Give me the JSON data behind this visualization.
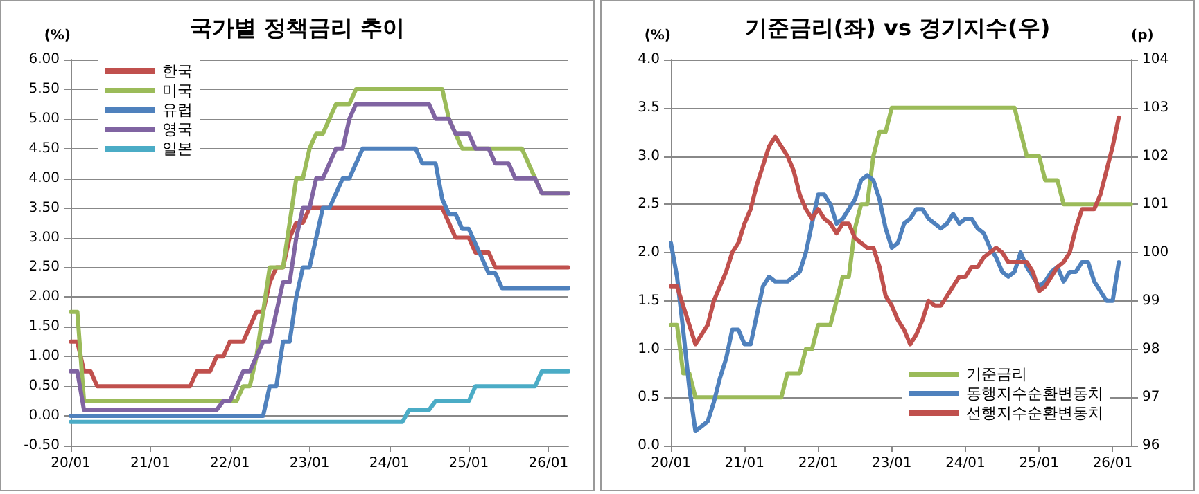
{
  "chart_data": [
    {
      "type": "line",
      "title": "국가별 정책금리 추이",
      "ylabel": "(%)",
      "categories": [
        "20/01",
        null,
        null,
        null,
        null,
        null,
        null,
        null,
        null,
        null,
        null,
        null,
        "21/01",
        null,
        null,
        null,
        null,
        null,
        null,
        null,
        null,
        null,
        null,
        null,
        "22/01",
        null,
        null,
        null,
        null,
        null,
        null,
        null,
        null,
        null,
        null,
        null,
        "23/01",
        null,
        null,
        null,
        null,
        null,
        null,
        null,
        null,
        null,
        null,
        null,
        "24/01",
        null,
        null,
        null,
        null,
        null,
        null,
        null,
        null,
        null,
        null,
        null,
        "25/01",
        null,
        null,
        null,
        null,
        null,
        null,
        null,
        null,
        null,
        null,
        null,
        "26/01",
        null,
        null,
        null
      ],
      "series": [
        {
          "name": "한국",
          "color": "#c0504d",
          "values": [
            1.25,
            1.25,
            0.75,
            0.75,
            0.5,
            0.5,
            0.5,
            0.5,
            0.5,
            0.5,
            0.5,
            0.5,
            0.5,
            0.5,
            0.5,
            0.5,
            0.5,
            0.5,
            0.5,
            0.75,
            0.75,
            0.75,
            1,
            1,
            1.25,
            1.25,
            1.25,
            1.5,
            1.75,
            1.75,
            2.25,
            2.5,
            2.5,
            3,
            3.25,
            3.25,
            3.5,
            3.5,
            3.5,
            3.5,
            3.5,
            3.5,
            3.5,
            3.5,
            3.5,
            3.5,
            3.5,
            3.5,
            3.5,
            3.5,
            3.5,
            3.5,
            3.5,
            3.5,
            3.5,
            3.5,
            3.5,
            3.25,
            3,
            3,
            3,
            2.75,
            2.75,
            2.75,
            2.5,
            2.5,
            2.5,
            2.5,
            2.5,
            2.5,
            2.5,
            2.5,
            2.5,
            2.5,
            2.5,
            2.5
          ]
        },
        {
          "name": "미국",
          "color": "#9bbb59",
          "values": [
            1.75,
            1.75,
            0.25,
            0.25,
            0.25,
            0.25,
            0.25,
            0.25,
            0.25,
            0.25,
            0.25,
            0.25,
            0.25,
            0.25,
            0.25,
            0.25,
            0.25,
            0.25,
            0.25,
            0.25,
            0.25,
            0.25,
            0.25,
            0.25,
            0.25,
            0.25,
            0.5,
            0.5,
            1,
            1.75,
            2.5,
            2.5,
            2.5,
            3.25,
            4,
            4,
            4.5,
            4.75,
            4.75,
            5,
            5.25,
            5.25,
            5.25,
            5.5,
            5.5,
            5.5,
            5.5,
            5.5,
            5.5,
            5.5,
            5.5,
            5.5,
            5.5,
            5.5,
            5.5,
            5.5,
            5.5,
            5,
            4.75,
            4.5,
            4.5,
            4.5,
            4.5,
            4.5,
            4.5,
            4.5,
            4.5,
            4.5,
            4.5,
            4.25,
            4,
            3.75,
            3.75,
            3.75,
            3.75,
            3.75
          ]
        },
        {
          "name": "유럽",
          "color": "#4f81bd",
          "values": [
            0,
            0,
            0,
            0,
            0,
            0,
            0,
            0,
            0,
            0,
            0,
            0,
            0,
            0,
            0,
            0,
            0,
            0,
            0,
            0,
            0,
            0,
            0,
            0,
            0,
            0,
            0,
            0,
            0,
            0,
            0.5,
            0.5,
            1.25,
            1.25,
            2,
            2.5,
            2.5,
            3,
            3.5,
            3.5,
            3.75,
            4,
            4,
            4.25,
            4.5,
            4.5,
            4.5,
            4.5,
            4.5,
            4.5,
            4.5,
            4.5,
            4.5,
            4.25,
            4.25,
            4.25,
            3.65,
            3.4,
            3.4,
            3.15,
            3.15,
            2.9,
            2.65,
            2.4,
            2.4,
            2.15,
            2.15,
            2.15,
            2.15,
            2.15,
            2.15,
            2.15,
            2.15,
            2.15,
            2.15,
            2.15
          ]
        },
        {
          "name": "영국",
          "color": "#8064a2",
          "values": [
            0.75,
            0.75,
            0.1,
            0.1,
            0.1,
            0.1,
            0.1,
            0.1,
            0.1,
            0.1,
            0.1,
            0.1,
            0.1,
            0.1,
            0.1,
            0.1,
            0.1,
            0.1,
            0.1,
            0.1,
            0.1,
            0.1,
            0.1,
            0.25,
            0.25,
            0.5,
            0.75,
            0.75,
            1,
            1.25,
            1.25,
            1.75,
            2.25,
            2.25,
            3,
            3.5,
            3.5,
            4,
            4,
            4.25,
            4.5,
            4.5,
            5,
            5.25,
            5.25,
            5.25,
            5.25,
            5.25,
            5.25,
            5.25,
            5.25,
            5.25,
            5.25,
            5.25,
            5.25,
            5,
            5,
            5,
            4.75,
            4.75,
            4.75,
            4.5,
            4.5,
            4.5,
            4.25,
            4.25,
            4.25,
            4,
            4,
            4,
            4,
            3.75,
            3.75,
            3.75,
            3.75,
            3.75
          ]
        },
        {
          "name": "일본",
          "color": "#4bacc6",
          "values": [
            -0.1,
            -0.1,
            -0.1,
            -0.1,
            -0.1,
            -0.1,
            -0.1,
            -0.1,
            -0.1,
            -0.1,
            -0.1,
            -0.1,
            -0.1,
            -0.1,
            -0.1,
            -0.1,
            -0.1,
            -0.1,
            -0.1,
            -0.1,
            -0.1,
            -0.1,
            -0.1,
            -0.1,
            -0.1,
            -0.1,
            -0.1,
            -0.1,
            -0.1,
            -0.1,
            -0.1,
            -0.1,
            -0.1,
            -0.1,
            -0.1,
            -0.1,
            -0.1,
            -0.1,
            -0.1,
            -0.1,
            -0.1,
            -0.1,
            -0.1,
            -0.1,
            -0.1,
            -0.1,
            -0.1,
            -0.1,
            -0.1,
            -0.1,
            -0.1,
            0.1,
            0.1,
            0.1,
            0.1,
            0.25,
            0.25,
            0.25,
            0.25,
            0.25,
            0.25,
            0.5,
            0.5,
            0.5,
            0.5,
            0.5,
            0.5,
            0.5,
            0.5,
            0.5,
            0.5,
            0.75,
            0.75,
            0.75,
            0.75,
            0.75
          ]
        }
      ],
      "ylim": [
        -0.5,
        6
      ],
      "yticks": [
        {
          "value": -0.5,
          "label": "-0.50"
        },
        {
          "value": 0,
          "label": "0.00"
        },
        {
          "value": 0.5,
          "label": "0.50"
        },
        {
          "value": 1,
          "label": "1.00"
        },
        {
          "value": 1.5,
          "label": "1.50"
        },
        {
          "value": 2,
          "label": "2.00"
        },
        {
          "value": 2.5,
          "label": "2.50"
        },
        {
          "value": 3,
          "label": "3.00"
        },
        {
          "value": 3.5,
          "label": "3.50"
        },
        {
          "value": 4,
          "label": "4.00"
        },
        {
          "value": 4.5,
          "label": "4.50"
        },
        {
          "value": 5,
          "label": "5.00"
        },
        {
          "value": 5.5,
          "label": "5.50"
        },
        {
          "value": 6,
          "label": "6.00"
        }
      ],
      "grid": "y",
      "legend": "top left"
    },
    {
      "type": "line",
      "title": "기준금리(좌) vs 경기지수(우)",
      "ylabel": "(%)",
      "y2label": "(p)",
      "categories": [
        "20/01",
        null,
        null,
        null,
        null,
        null,
        null,
        null,
        null,
        null,
        null,
        null,
        "21/01",
        null,
        null,
        null,
        null,
        null,
        null,
        null,
        null,
        null,
        null,
        null,
        "22/01",
        null,
        null,
        null,
        null,
        null,
        null,
        null,
        null,
        null,
        null,
        null,
        "23/01",
        null,
        null,
        null,
        null,
        null,
        null,
        null,
        null,
        null,
        null,
        null,
        "24/01",
        null,
        null,
        null,
        null,
        null,
        null,
        null,
        null,
        null,
        null,
        null,
        "25/01",
        null,
        null,
        null,
        null,
        null,
        null,
        null,
        null,
        null,
        null,
        null,
        "26/01",
        null,
        null,
        null
      ],
      "series": [
        {
          "name": "기준금리",
          "color": "#9bbb59",
          "values": [
            1.25,
            1.25,
            0.75,
            0.75,
            0.5,
            0.5,
            0.5,
            0.5,
            0.5,
            0.5,
            0.5,
            0.5,
            0.5,
            0.5,
            0.5,
            0.5,
            0.5,
            0.5,
            0.5,
            0.75,
            0.75,
            0.75,
            1,
            1,
            1.25,
            1.25,
            1.25,
            1.5,
            1.75,
            1.75,
            2.25,
            2.5,
            2.5,
            3,
            3.25,
            3.25,
            3.5,
            3.5,
            3.5,
            3.5,
            3.5,
            3.5,
            3.5,
            3.5,
            3.5,
            3.5,
            3.5,
            3.5,
            3.5,
            3.5,
            3.5,
            3.5,
            3.5,
            3.5,
            3.5,
            3.5,
            3.5,
            3.25,
            3,
            3,
            3,
            2.75,
            2.75,
            2.75,
            2.5,
            2.5,
            2.5,
            2.5,
            2.5,
            2.5,
            2.5,
            2.5,
            2.5,
            2.5,
            2.5,
            2.5
          ]
        },
        {
          "name": "동행지수순환변동치",
          "color": "#4f81bd",
          "axis": "y2",
          "values": [
            100.2,
            99.5,
            98.4,
            97.2,
            96.3,
            96.4,
            96.5,
            96.9,
            97.4,
            97.8,
            98.4,
            98.4,
            98.1,
            98.1,
            98.7,
            99.3,
            99.5,
            99.4,
            99.4,
            99.4,
            99.5,
            99.6,
            100,
            100.6,
            101.2,
            101.2,
            101,
            100.6,
            100.7,
            100.9,
            101.1,
            101.5,
            101.6,
            101.5,
            101.1,
            100.5,
            100.1,
            100.2,
            100.6,
            100.7,
            100.9,
            100.9,
            100.7,
            100.6,
            100.5,
            100.6,
            100.8,
            100.6,
            100.7,
            100.7,
            100.5,
            100.4,
            100.1,
            99.9,
            99.6,
            99.5,
            99.6,
            100,
            99.7,
            99.5,
            99.3,
            99.4,
            99.6,
            99.7,
            99.4,
            99.6,
            99.6,
            99.8,
            99.8,
            99.4,
            99.2,
            99,
            99,
            99.8,
            null,
            null
          ]
        },
        {
          "name": "선행지수순환변동치",
          "color": "#c0504d",
          "axis": "y2",
          "values": [
            99.3,
            99.3,
            98.9,
            98.5,
            98.1,
            98.3,
            98.5,
            99,
            99.3,
            99.6,
            100,
            100.2,
            100.6,
            100.9,
            101.4,
            101.8,
            102.2,
            102.4,
            102.2,
            102,
            101.7,
            101.2,
            100.9,
            100.7,
            100.9,
            100.7,
            100.6,
            100.4,
            100.6,
            100.6,
            100.3,
            100.2,
            100.1,
            100.1,
            99.7,
            99.1,
            98.9,
            98.6,
            98.4,
            98.1,
            98.3,
            98.6,
            99,
            98.9,
            98.9,
            99.1,
            99.3,
            99.5,
            99.5,
            99.7,
            99.7,
            99.9,
            100,
            100.1,
            100,
            99.8,
            99.8,
            99.8,
            99.8,
            99.6,
            99.2,
            99.3,
            99.5,
            99.7,
            99.8,
            100,
            100.5,
            100.9,
            100.9,
            100.9,
            101.2,
            101.7,
            102.2,
            102.8,
            null,
            null
          ]
        }
      ],
      "ylim": [
        0,
        4
      ],
      "yticks": [
        {
          "value": 0,
          "label": "0.0"
        },
        {
          "value": 0.5,
          "label": "0.5"
        },
        {
          "value": 1,
          "label": "1.0"
        },
        {
          "value": 1.5,
          "label": "1.5"
        },
        {
          "value": 2,
          "label": "2.0"
        },
        {
          "value": 2.5,
          "label": "2.5"
        },
        {
          "value": 3,
          "label": "3.0"
        },
        {
          "value": 3.5,
          "label": "3.5"
        },
        {
          "value": 4,
          "label": "4.0"
        }
      ],
      "y2lim": [
        96,
        104
      ],
      "y2ticks": [
        96,
        97,
        98,
        99,
        100,
        101,
        102,
        103,
        104
      ],
      "grid": "y",
      "legend": "bottom right"
    }
  ]
}
